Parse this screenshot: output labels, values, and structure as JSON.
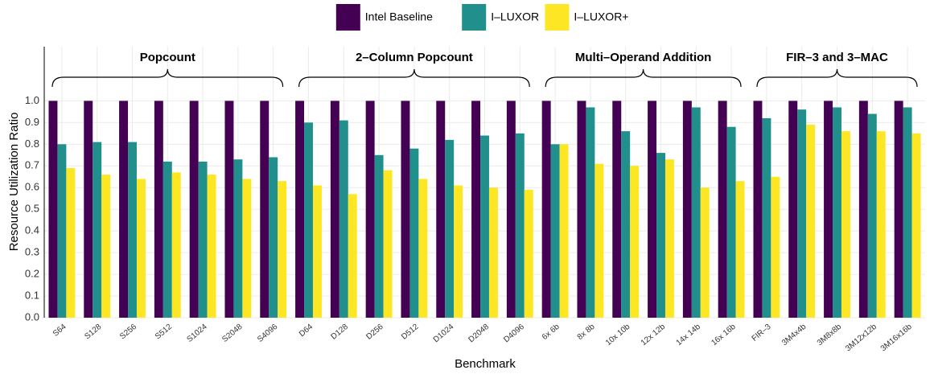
{
  "chart_data": {
    "type": "bar",
    "xlabel": "Benchmark",
    "ylabel": "Resource Utilization Ratio",
    "categories": [
      "S64",
      "S128",
      "S256",
      "S512",
      "S1024",
      "S2048",
      "S4096",
      "D64",
      "D128",
      "D256",
      "D512",
      "D1024",
      "D2048",
      "D4096",
      "6x 6b",
      "8x 8b",
      "10x 10b",
      "12x 12b",
      "14x 14b",
      "16x 16b",
      "FIR–3",
      "3M4x4b",
      "3M8x8b",
      "3M12x12b",
      "3M16x16b"
    ],
    "series": [
      {
        "name": "Intel Baseline",
        "color": "#440154",
        "values": [
          1.0,
          1.0,
          1.0,
          1.0,
          1.0,
          1.0,
          1.0,
          1.0,
          1.0,
          1.0,
          1.0,
          1.0,
          1.0,
          1.0,
          1.0,
          1.0,
          1.0,
          1.0,
          1.0,
          1.0,
          1.0,
          1.0,
          1.0,
          1.0,
          1.0
        ]
      },
      {
        "name": "I–LUXOR",
        "color": "#21908C",
        "values": [
          0.8,
          0.81,
          0.81,
          0.72,
          0.72,
          0.73,
          0.74,
          0.9,
          0.91,
          0.75,
          0.78,
          0.82,
          0.84,
          0.85,
          0.8,
          0.97,
          0.86,
          0.76,
          0.97,
          0.88,
          0.92,
          0.96,
          0.97,
          0.94,
          0.97
        ]
      },
      {
        "name": "I–LUXOR+",
        "color": "#FDE725",
        "values": [
          0.69,
          0.66,
          0.64,
          0.67,
          0.66,
          0.64,
          0.63,
          0.61,
          0.57,
          0.68,
          0.64,
          0.61,
          0.6,
          0.59,
          0.8,
          0.71,
          0.7,
          0.73,
          0.6,
          0.63,
          0.65,
          0.89,
          0.86,
          0.86,
          0.85
        ]
      }
    ],
    "groups": [
      {
        "label": "Popcount",
        "from": "S64",
        "to": "S4096"
      },
      {
        "label": "2–Column Popcount",
        "from": "D64",
        "to": "D4096"
      },
      {
        "label": "Multi–Operand Addition",
        "from": "6x 6b",
        "to": "16x 16b"
      },
      {
        "label": "FIR–3 and 3–MAC",
        "from": "FIR–3",
        "to": "3M16x16b"
      }
    ],
    "ylim": [
      0,
      1.25
    ],
    "yticks": [
      {
        "value": 0,
        "label": "0.0"
      },
      0.1,
      0.2,
      0.3,
      0.4,
      0.5,
      0.6,
      0.7,
      0.8,
      0.9,
      {
        "value": 1,
        "label": "1.0"
      }
    ],
    "grid": true,
    "legend": "top"
  }
}
